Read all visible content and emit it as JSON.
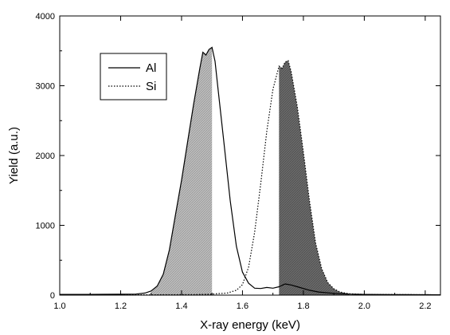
{
  "chart_data": {
    "type": "line",
    "xlabel": "X-ray energy (keV)",
    "ylabel": "Yield (a.u.)",
    "xlim": [
      1.0,
      2.25
    ],
    "ylim": [
      0,
      4000
    ],
    "xticks": [
      "1.0",
      "1.2",
      "1.4",
      "1.6",
      "1.8",
      "2.0",
      "2.2"
    ],
    "yticks": [
      "0",
      "1000",
      "2000",
      "3000",
      "4000"
    ],
    "xtick_values": [
      1.0,
      1.2,
      1.4,
      1.6,
      1.8,
      2.0,
      2.2
    ],
    "ytick_values": [
      0,
      1000,
      2000,
      3000,
      4000
    ],
    "grid": false,
    "legend_position": "top-left",
    "series": [
      {
        "name": "Al",
        "line_style": "solid",
        "color": "#000000",
        "shaded_region": [
          1.3,
          1.5
        ],
        "shade_color": "#bdbdbd",
        "points": [
          [
            1.0,
            10
          ],
          [
            1.1,
            10
          ],
          [
            1.2,
            12
          ],
          [
            1.25,
            15
          ],
          [
            1.28,
            30
          ],
          [
            1.3,
            60
          ],
          [
            1.32,
            130
          ],
          [
            1.34,
            300
          ],
          [
            1.36,
            650
          ],
          [
            1.38,
            1150
          ],
          [
            1.4,
            1650
          ],
          [
            1.42,
            2200
          ],
          [
            1.44,
            2750
          ],
          [
            1.46,
            3250
          ],
          [
            1.47,
            3480
          ],
          [
            1.48,
            3440
          ],
          [
            1.49,
            3520
          ],
          [
            1.5,
            3550
          ],
          [
            1.51,
            3350
          ],
          [
            1.52,
            2950
          ],
          [
            1.54,
            2150
          ],
          [
            1.56,
            1350
          ],
          [
            1.58,
            700
          ],
          [
            1.6,
            330
          ],
          [
            1.62,
            170
          ],
          [
            1.64,
            100
          ],
          [
            1.66,
            95
          ],
          [
            1.68,
            110
          ],
          [
            1.7,
            100
          ],
          [
            1.72,
            120
          ],
          [
            1.74,
            160
          ],
          [
            1.76,
            145
          ],
          [
            1.78,
            120
          ],
          [
            1.8,
            95
          ],
          [
            1.82,
            70
          ],
          [
            1.85,
            45
          ],
          [
            1.9,
            25
          ],
          [
            1.95,
            15
          ],
          [
            2.0,
            10
          ],
          [
            2.1,
            8
          ],
          [
            2.2,
            6
          ],
          [
            2.25,
            5
          ]
        ]
      },
      {
        "name": "Si",
        "line_style": "dotted",
        "color": "#000000",
        "shaded_region": [
          1.72,
          1.95
        ],
        "shade_color": "#6e6e6e",
        "points": [
          [
            1.0,
            5
          ],
          [
            1.3,
            5
          ],
          [
            1.45,
            8
          ],
          [
            1.5,
            15
          ],
          [
            1.55,
            30
          ],
          [
            1.58,
            70
          ],
          [
            1.6,
            150
          ],
          [
            1.62,
            400
          ],
          [
            1.64,
            900
          ],
          [
            1.66,
            1600
          ],
          [
            1.68,
            2350
          ],
          [
            1.7,
            2950
          ],
          [
            1.72,
            3280
          ],
          [
            1.73,
            3250
          ],
          [
            1.74,
            3340
          ],
          [
            1.75,
            3360
          ],
          [
            1.76,
            3200
          ],
          [
            1.78,
            2700
          ],
          [
            1.8,
            2050
          ],
          [
            1.82,
            1350
          ],
          [
            1.84,
            750
          ],
          [
            1.86,
            380
          ],
          [
            1.88,
            180
          ],
          [
            1.9,
            90
          ],
          [
            1.92,
            45
          ],
          [
            1.95,
            20
          ],
          [
            2.0,
            10
          ],
          [
            2.1,
            8
          ],
          [
            2.2,
            6
          ],
          [
            2.25,
            5
          ]
        ]
      }
    ]
  }
}
